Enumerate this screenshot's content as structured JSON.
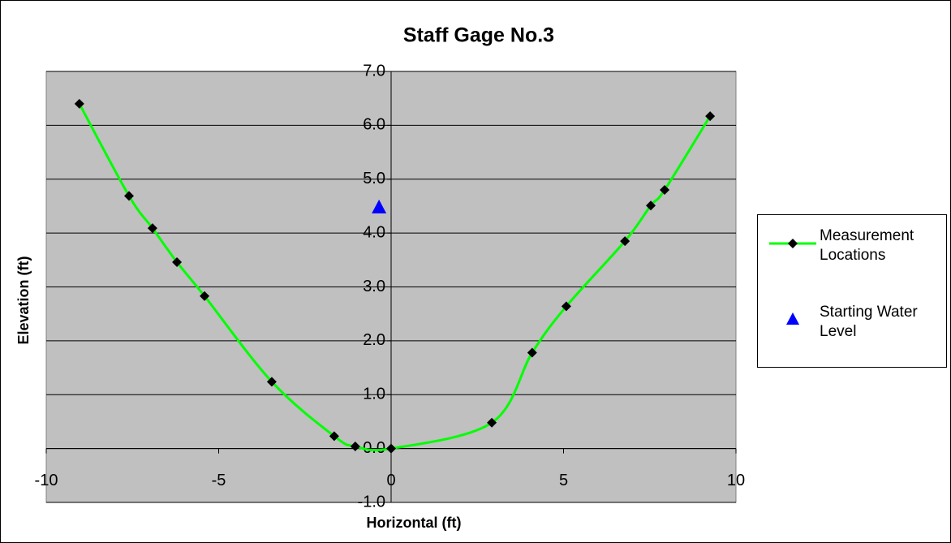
{
  "chart_data": {
    "type": "scatter",
    "title": "Staff Gage No.3",
    "x_label": "Horizontal (ft)",
    "y_label": "Elevation (ft)",
    "series": [
      {
        "name": "Measurement Locations",
        "color": "#00ff00",
        "marker_color": "#000000",
        "marker": "diamond",
        "line": true,
        "x": [
          -9.04,
          -7.6,
          -6.92,
          -6.21,
          -5.41,
          -3.46,
          -1.65,
          -1.04,
          0,
          2.92,
          4.09,
          5.08,
          6.78,
          7.53,
          7.93,
          9.25
        ],
        "values": [
          6.4,
          4.69,
          4.09,
          3.46,
          2.83,
          1.24,
          0.23,
          0.04,
          0,
          0.48,
          1.78,
          2.64,
          3.85,
          4.51,
          4.8,
          6.17
        ]
      },
      {
        "name": "Starting Water Level",
        "color": "#0000ff",
        "marker": "triangle",
        "line": false,
        "x": [
          -0.35
        ],
        "values": [
          4.47
        ]
      }
    ],
    "xlim": [
      -10,
      10
    ],
    "xticks": [
      -10,
      -5,
      0,
      5,
      10
    ],
    "ylim": [
      -1,
      7
    ],
    "yticks": [
      {
        "value": -1,
        "label": "-1.0"
      },
      {
        "value": 0,
        "label": "0.0"
      },
      {
        "value": 1,
        "label": "1.0"
      },
      {
        "value": 2,
        "label": "2.0"
      },
      {
        "value": 3,
        "label": "3.0"
      },
      {
        "value": 4,
        "label": "4.0"
      },
      {
        "value": 5,
        "label": "5.0"
      },
      {
        "value": 6,
        "label": "6.0"
      },
      {
        "value": 7,
        "label": "7.0"
      }
    ],
    "grid": true,
    "legend": "right"
  }
}
